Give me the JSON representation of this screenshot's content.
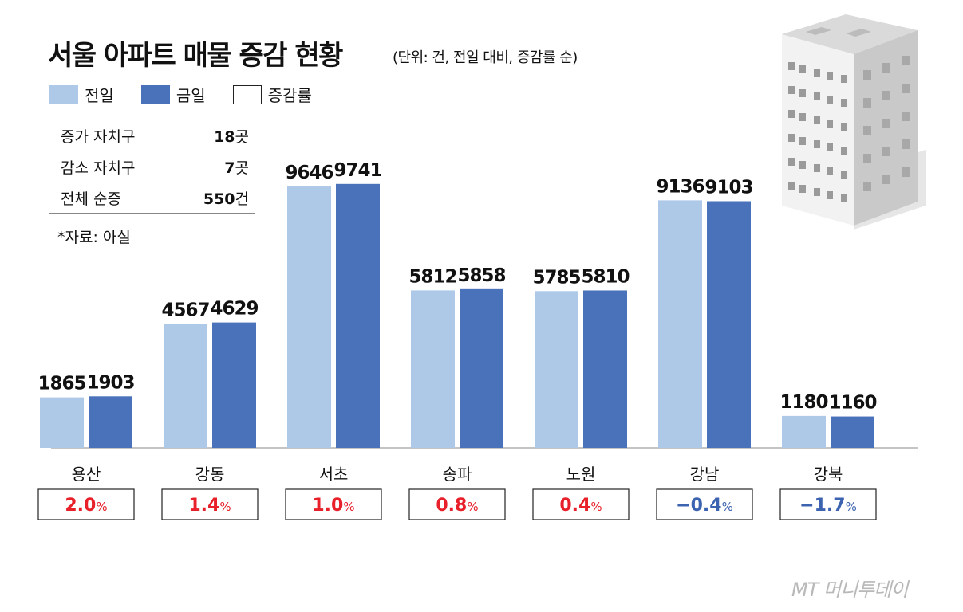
{
  "title": "서울 아파트 매물 증감 현황",
  "subtitle": "(단위: 건, 전일 대비, 증감률 순)",
  "legend": [
    {
      "label": "전일",
      "color": "#aec8e8"
    },
    {
      "label": "금일",
      "color": "#4a72bb"
    },
    {
      "label": "증감률",
      "color": "#ffffff"
    }
  ],
  "summary": [
    {
      "label": "증가 자치구",
      "num": "18",
      "unit": "곳"
    },
    {
      "label": "감소 자치구",
      "num": "7",
      "unit": "곳"
    },
    {
      "label": "전체 순증",
      "num": "550",
      "unit": "건"
    }
  ],
  "source": "*자료: 아실",
  "watermark": "MT 머니투데이",
  "colors": {
    "prev": "#aec8e8",
    "today": "#4a72bb",
    "positive": "#e8202a",
    "negative": "#3b63b0"
  },
  "chart_data": {
    "type": "bar",
    "categories": [
      "용산",
      "강동",
      "서초",
      "송파",
      "노원",
      "강남",
      "강북"
    ],
    "series": [
      {
        "name": "전일",
        "values": [
          1865,
          4567,
          9646,
          5812,
          5785,
          9136,
          1180
        ]
      },
      {
        "name": "금일",
        "values": [
          1903,
          4629,
          9741,
          5858,
          5810,
          9103,
          1160
        ]
      }
    ],
    "change_rates": [
      {
        "num": "2.0",
        "unit": "%"
      },
      {
        "num": "1.4",
        "unit": "%"
      },
      {
        "num": "1.0",
        "unit": "%"
      },
      {
        "num": "0.8",
        "unit": "%"
      },
      {
        "num": "0.4",
        "unit": "%"
      },
      {
        "num": "-0.4",
        "unit": "%"
      },
      {
        "num": "-1.7",
        "unit": "%"
      }
    ],
    "title": "서울 아파트 매물 증감 현황",
    "ylim": [
      0,
      10000
    ]
  }
}
